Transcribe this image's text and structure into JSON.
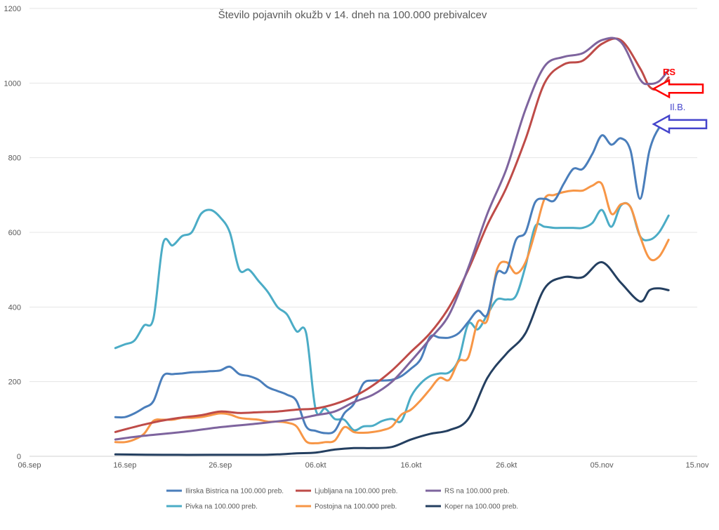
{
  "chart_data": {
    "type": "line",
    "title": "Število pojavnih okužb v 14. dneh na 100.000 prebivalcev",
    "xlabel": "",
    "ylabel": "",
    "ylim": [
      0,
      1200
    ],
    "yticks": [
      0,
      200,
      400,
      600,
      800,
      1000,
      1200
    ],
    "xlim": [
      "2020-09-06",
      "2020-11-15"
    ],
    "xticks": [
      {
        "date": "2020-09-06",
        "label": "06.sep"
      },
      {
        "date": "2020-09-16",
        "label": "16.sep"
      },
      {
        "date": "2020-09-26",
        "label": "26.sep"
      },
      {
        "date": "2020-10-06",
        "label": "06.okt"
      },
      {
        "date": "2020-10-16",
        "label": "16.okt"
      },
      {
        "date": "2020-10-26",
        "label": "26.okt"
      },
      {
        "date": "2020-11-05",
        "label": "05.nov"
      },
      {
        "date": "2020-11-15",
        "label": "15.nov"
      }
    ],
    "grid": true,
    "legend_position": "bottom",
    "series": [
      {
        "name": "Ilirska Bistrica na 100.000 preb.",
        "color": "#4a7ebb",
        "points": [
          [
            "2020-09-15",
            105
          ],
          [
            "2020-09-16",
            105
          ],
          [
            "2020-09-17",
            115
          ],
          [
            "2020-09-18",
            130
          ],
          [
            "2020-09-19",
            148
          ],
          [
            "2020-09-20",
            215
          ],
          [
            "2020-09-21",
            220
          ],
          [
            "2020-09-22",
            222
          ],
          [
            "2020-09-23",
            225
          ],
          [
            "2020-09-24",
            226
          ],
          [
            "2020-09-25",
            228
          ],
          [
            "2020-09-26",
            230
          ],
          [
            "2020-09-27",
            240
          ],
          [
            "2020-09-28",
            220
          ],
          [
            "2020-09-29",
            215
          ],
          [
            "2020-09-30",
            205
          ],
          [
            "2020-10-01",
            185
          ],
          [
            "2020-10-02",
            175
          ],
          [
            "2020-10-03",
            165
          ],
          [
            "2020-10-04",
            148
          ],
          [
            "2020-10-05",
            80
          ],
          [
            "2020-10-06",
            68
          ],
          [
            "2020-10-07",
            62
          ],
          [
            "2020-10-08",
            68
          ],
          [
            "2020-10-09",
            115
          ],
          [
            "2020-10-10",
            140
          ],
          [
            "2020-10-11",
            195
          ],
          [
            "2020-10-12",
            203
          ],
          [
            "2020-10-13",
            203
          ],
          [
            "2020-10-14",
            205
          ],
          [
            "2020-10-15",
            215
          ],
          [
            "2020-10-16",
            235
          ],
          [
            "2020-10-17",
            260
          ],
          [
            "2020-10-18",
            320
          ],
          [
            "2020-10-19",
            318
          ],
          [
            "2020-10-20",
            318
          ],
          [
            "2020-10-21",
            330
          ],
          [
            "2020-10-22",
            360
          ],
          [
            "2020-10-23",
            390
          ],
          [
            "2020-10-24",
            380
          ],
          [
            "2020-10-25",
            490
          ],
          [
            "2020-10-26",
            495
          ],
          [
            "2020-10-27",
            580
          ],
          [
            "2020-10-28",
            600
          ],
          [
            "2020-10-29",
            680
          ],
          [
            "2020-10-30",
            690
          ],
          [
            "2020-10-31",
            685
          ],
          [
            "2020-11-01",
            730
          ],
          [
            "2020-11-02",
            770
          ],
          [
            "2020-11-03",
            770
          ],
          [
            "2020-11-04",
            810
          ],
          [
            "2020-11-05",
            860
          ],
          [
            "2020-11-06",
            835
          ],
          [
            "2020-11-07",
            852
          ],
          [
            "2020-11-08",
            820
          ],
          [
            "2020-11-09",
            690
          ],
          [
            "2020-11-10",
            820
          ],
          [
            "2020-11-11",
            880
          ],
          [
            "2020-11-12",
            900
          ]
        ]
      },
      {
        "name": "Ljubljana na 100.000 preb.",
        "color": "#be4b48",
        "points": [
          [
            "2020-09-15",
            65
          ],
          [
            "2020-09-16",
            72
          ],
          [
            "2020-09-18",
            85
          ],
          [
            "2020-09-20",
            96
          ],
          [
            "2020-09-22",
            104
          ],
          [
            "2020-09-24",
            110
          ],
          [
            "2020-09-26",
            120
          ],
          [
            "2020-09-28",
            116
          ],
          [
            "2020-09-30",
            118
          ],
          [
            "2020-10-02",
            120
          ],
          [
            "2020-10-04",
            125
          ],
          [
            "2020-10-06",
            128
          ],
          [
            "2020-10-08",
            140
          ],
          [
            "2020-10-10",
            160
          ],
          [
            "2020-10-12",
            190
          ],
          [
            "2020-10-14",
            230
          ],
          [
            "2020-10-16",
            280
          ],
          [
            "2020-10-18",
            330
          ],
          [
            "2020-10-20",
            400
          ],
          [
            "2020-10-22",
            500
          ],
          [
            "2020-10-24",
            620
          ],
          [
            "2020-10-26",
            720
          ],
          [
            "2020-10-28",
            850
          ],
          [
            "2020-10-30",
            1000
          ],
          [
            "2020-11-01",
            1050
          ],
          [
            "2020-11-03",
            1060
          ],
          [
            "2020-11-05",
            1105
          ],
          [
            "2020-11-07",
            1115
          ],
          [
            "2020-11-09",
            1040
          ],
          [
            "2020-11-10",
            990
          ],
          [
            "2020-11-11",
            985
          ],
          [
            "2020-11-12",
            1015
          ]
        ]
      },
      {
        "name": "RS na 100.000 preb.",
        "color": "#7e649e",
        "points": [
          [
            "2020-09-15",
            45
          ],
          [
            "2020-09-18",
            55
          ],
          [
            "2020-09-22",
            65
          ],
          [
            "2020-09-26",
            78
          ],
          [
            "2020-09-30",
            88
          ],
          [
            "2020-10-04",
            100
          ],
          [
            "2020-10-06",
            110
          ],
          [
            "2020-10-08",
            120
          ],
          [
            "2020-10-10",
            145
          ],
          [
            "2020-10-12",
            165
          ],
          [
            "2020-10-14",
            200
          ],
          [
            "2020-10-16",
            255
          ],
          [
            "2020-10-18",
            315
          ],
          [
            "2020-10-20",
            380
          ],
          [
            "2020-10-22",
            505
          ],
          [
            "2020-10-24",
            650
          ],
          [
            "2020-10-26",
            770
          ],
          [
            "2020-10-28",
            930
          ],
          [
            "2020-10-30",
            1045
          ],
          [
            "2020-11-01",
            1070
          ],
          [
            "2020-11-03",
            1080
          ],
          [
            "2020-11-05",
            1115
          ],
          [
            "2020-11-07",
            1110
          ],
          [
            "2020-11-09",
            1010
          ],
          [
            "2020-11-10",
            998
          ],
          [
            "2020-11-11",
            1005
          ],
          [
            "2020-11-12",
            1035
          ]
        ]
      },
      {
        "name": "Pivka na 100.000 preb.",
        "color": "#4bacc6",
        "points": [
          [
            "2020-09-15",
            290
          ],
          [
            "2020-09-16",
            300
          ],
          [
            "2020-09-17",
            310
          ],
          [
            "2020-09-18",
            350
          ],
          [
            "2020-09-19",
            370
          ],
          [
            "2020-09-20",
            570
          ],
          [
            "2020-09-21",
            565
          ],
          [
            "2020-09-22",
            590
          ],
          [
            "2020-09-23",
            600
          ],
          [
            "2020-09-24",
            650
          ],
          [
            "2020-09-25",
            660
          ],
          [
            "2020-09-26",
            640
          ],
          [
            "2020-09-27",
            600
          ],
          [
            "2020-09-28",
            500
          ],
          [
            "2020-09-29",
            500
          ],
          [
            "2020-09-30",
            470
          ],
          [
            "2020-10-01",
            440
          ],
          [
            "2020-10-02",
            400
          ],
          [
            "2020-10-03",
            380
          ],
          [
            "2020-10-04",
            335
          ],
          [
            "2020-10-05",
            330
          ],
          [
            "2020-10-06",
            125
          ],
          [
            "2020-10-07",
            128
          ],
          [
            "2020-10-08",
            100
          ],
          [
            "2020-10-09",
            98
          ],
          [
            "2020-10-10",
            70
          ],
          [
            "2020-10-11",
            80
          ],
          [
            "2020-10-12",
            82
          ],
          [
            "2020-10-13",
            95
          ],
          [
            "2020-10-14",
            100
          ],
          [
            "2020-10-15",
            95
          ],
          [
            "2020-10-16",
            160
          ],
          [
            "2020-10-17",
            195
          ],
          [
            "2020-10-18",
            215
          ],
          [
            "2020-10-19",
            222
          ],
          [
            "2020-10-20",
            225
          ],
          [
            "2020-10-21",
            260
          ],
          [
            "2020-10-22",
            355
          ],
          [
            "2020-10-23",
            340
          ],
          [
            "2020-10-24",
            380
          ],
          [
            "2020-10-25",
            420
          ],
          [
            "2020-10-26",
            420
          ],
          [
            "2020-10-27",
            430
          ],
          [
            "2020-10-28",
            510
          ],
          [
            "2020-10-29",
            615
          ],
          [
            "2020-10-30",
            615
          ],
          [
            "2020-10-31",
            612
          ],
          [
            "2020-11-01",
            612
          ],
          [
            "2020-11-02",
            612
          ],
          [
            "2020-11-03",
            612
          ],
          [
            "2020-11-04",
            625
          ],
          [
            "2020-11-05",
            660
          ],
          [
            "2020-11-06",
            615
          ],
          [
            "2020-11-07",
            672
          ],
          [
            "2020-11-08",
            668
          ],
          [
            "2020-11-09",
            590
          ],
          [
            "2020-11-10",
            580
          ],
          [
            "2020-11-11",
            600
          ],
          [
            "2020-11-12",
            645
          ]
        ]
      },
      {
        "name": "Postojna na 100.000 preb.",
        "color": "#f79646",
        "points": [
          [
            "2020-09-15",
            38
          ],
          [
            "2020-09-16",
            38
          ],
          [
            "2020-09-17",
            45
          ],
          [
            "2020-09-18",
            60
          ],
          [
            "2020-09-19",
            95
          ],
          [
            "2020-09-20",
            98
          ],
          [
            "2020-09-21",
            98
          ],
          [
            "2020-09-22",
            103
          ],
          [
            "2020-09-23",
            103
          ],
          [
            "2020-09-24",
            105
          ],
          [
            "2020-09-25",
            110
          ],
          [
            "2020-09-26",
            115
          ],
          [
            "2020-09-27",
            112
          ],
          [
            "2020-09-28",
            103
          ],
          [
            "2020-09-29",
            100
          ],
          [
            "2020-09-30",
            98
          ],
          [
            "2020-10-01",
            93
          ],
          [
            "2020-10-02",
            93
          ],
          [
            "2020-10-03",
            90
          ],
          [
            "2020-10-04",
            80
          ],
          [
            "2020-10-05",
            40
          ],
          [
            "2020-10-06",
            35
          ],
          [
            "2020-10-07",
            38
          ],
          [
            "2020-10-08",
            42
          ],
          [
            "2020-10-09",
            78
          ],
          [
            "2020-10-10",
            65
          ],
          [
            "2020-10-11",
            63
          ],
          [
            "2020-10-12",
            65
          ],
          [
            "2020-10-13",
            70
          ],
          [
            "2020-10-14",
            80
          ],
          [
            "2020-10-15",
            112
          ],
          [
            "2020-10-16",
            125
          ],
          [
            "2020-10-17",
            150
          ],
          [
            "2020-10-18",
            180
          ],
          [
            "2020-10-19",
            210
          ],
          [
            "2020-10-20",
            205
          ],
          [
            "2020-10-21",
            255
          ],
          [
            "2020-10-22",
            265
          ],
          [
            "2020-10-23",
            360
          ],
          [
            "2020-10-24",
            365
          ],
          [
            "2020-10-25",
            500
          ],
          [
            "2020-10-26",
            520
          ],
          [
            "2020-10-27",
            490
          ],
          [
            "2020-10-28",
            520
          ],
          [
            "2020-10-29",
            600
          ],
          [
            "2020-10-30",
            690
          ],
          [
            "2020-10-31",
            700
          ],
          [
            "2020-11-01",
            708
          ],
          [
            "2020-11-02",
            712
          ],
          [
            "2020-11-03",
            712
          ],
          [
            "2020-11-04",
            725
          ],
          [
            "2020-11-05",
            730
          ],
          [
            "2020-11-06",
            650
          ],
          [
            "2020-11-07",
            675
          ],
          [
            "2020-11-08",
            668
          ],
          [
            "2020-11-09",
            590
          ],
          [
            "2020-11-10",
            530
          ],
          [
            "2020-11-11",
            535
          ],
          [
            "2020-11-12",
            580
          ]
        ]
      },
      {
        "name": "Koper na 100.000 preb.",
        "color": "#243f60",
        "points": [
          [
            "2020-09-15",
            5
          ],
          [
            "2020-09-20",
            4
          ],
          [
            "2020-09-25",
            4
          ],
          [
            "2020-09-30",
            4
          ],
          [
            "2020-10-02",
            5
          ],
          [
            "2020-10-04",
            8
          ],
          [
            "2020-10-06",
            10
          ],
          [
            "2020-10-08",
            18
          ],
          [
            "2020-10-10",
            22
          ],
          [
            "2020-10-12",
            22
          ],
          [
            "2020-10-14",
            25
          ],
          [
            "2020-10-16",
            45
          ],
          [
            "2020-10-18",
            60
          ],
          [
            "2020-10-20",
            70
          ],
          [
            "2020-10-22",
            100
          ],
          [
            "2020-10-24",
            210
          ],
          [
            "2020-10-26",
            275
          ],
          [
            "2020-10-28",
            330
          ],
          [
            "2020-10-30",
            450
          ],
          [
            "2020-11-01",
            480
          ],
          [
            "2020-11-03",
            480
          ],
          [
            "2020-11-05",
            520
          ],
          [
            "2020-11-07",
            465
          ],
          [
            "2020-11-09",
            415
          ],
          [
            "2020-11-10",
            445
          ],
          [
            "2020-11-11",
            450
          ],
          [
            "2020-11-12",
            445
          ]
        ]
      }
    ],
    "annotations": [
      {
        "text": "RS",
        "color": "#ff0000",
        "arrow_y": 985
      },
      {
        "text": "Il.B.",
        "color": "#4444cc",
        "arrow_y": 890
      }
    ]
  }
}
